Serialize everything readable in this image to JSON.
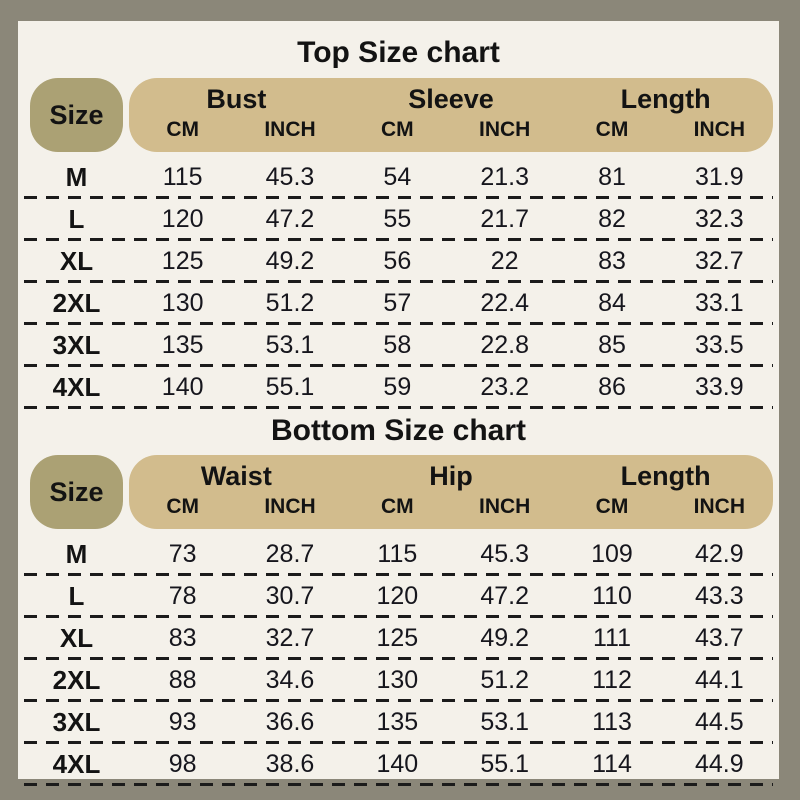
{
  "colors": {
    "frame": "#8b8779",
    "panel_background": "#f4f1ea",
    "size_pill": "#aba174",
    "header_band": "#d2bc8d",
    "text": "#131313",
    "dashed_line": "#1b1b1b"
  },
  "charts": [
    {
      "title": "Top Size chart",
      "size_label": "Size",
      "group_labels": [
        "Bust",
        "Sleeve",
        "Length"
      ],
      "unit_labels": [
        "CM",
        "INCH",
        "CM",
        "INCH",
        "CM",
        "INCH"
      ],
      "rows": [
        {
          "size": "M",
          "v": [
            "115",
            "45.3",
            "54",
            "21.3",
            "81",
            "31.9"
          ]
        },
        {
          "size": "L",
          "v": [
            "120",
            "47.2",
            "55",
            "21.7",
            "82",
            "32.3"
          ]
        },
        {
          "size": "XL",
          "v": [
            "125",
            "49.2",
            "56",
            "22",
            "83",
            "32.7"
          ]
        },
        {
          "size": "2XL",
          "v": [
            "130",
            "51.2",
            "57",
            "22.4",
            "84",
            "33.1"
          ]
        },
        {
          "size": "3XL",
          "v": [
            "135",
            "53.1",
            "58",
            "22.8",
            "85",
            "33.5"
          ]
        },
        {
          "size": "4XL",
          "v": [
            "140",
            "55.1",
            "59",
            "23.2",
            "86",
            "33.9"
          ]
        }
      ]
    },
    {
      "title": "Bottom Size chart",
      "size_label": "Size",
      "group_labels": [
        "Waist",
        "Hip",
        "Length"
      ],
      "unit_labels": [
        "CM",
        "INCH",
        "CM",
        "INCH",
        "CM",
        "INCH"
      ],
      "rows": [
        {
          "size": "M",
          "v": [
            "73",
            "28.7",
            "115",
            "45.3",
            "109",
            "42.9"
          ]
        },
        {
          "size": "L",
          "v": [
            "78",
            "30.7",
            "120",
            "47.2",
            "110",
            "43.3"
          ]
        },
        {
          "size": "XL",
          "v": [
            "83",
            "32.7",
            "125",
            "49.2",
            "111",
            "43.7"
          ]
        },
        {
          "size": "2XL",
          "v": [
            "88",
            "34.6",
            "130",
            "51.2",
            "112",
            "44.1"
          ]
        },
        {
          "size": "3XL",
          "v": [
            "93",
            "36.6",
            "135",
            "53.1",
            "113",
            "44.5"
          ]
        },
        {
          "size": "4XL",
          "v": [
            "98",
            "38.6",
            "140",
            "55.1",
            "114",
            "44.9"
          ]
        }
      ]
    }
  ],
  "chart_data": [
    {
      "type": "table",
      "title": "Top Size chart",
      "columns": [
        "Size",
        "Bust CM",
        "Bust INCH",
        "Sleeve CM",
        "Sleeve INCH",
        "Length CM",
        "Length INCH"
      ],
      "rows": [
        [
          "M",
          115,
          45.3,
          54,
          21.3,
          81,
          31.9
        ],
        [
          "L",
          120,
          47.2,
          55,
          21.7,
          82,
          32.3
        ],
        [
          "XL",
          125,
          49.2,
          56,
          22,
          83,
          32.7
        ],
        [
          "2XL",
          130,
          51.2,
          57,
          22.4,
          84,
          33.1
        ],
        [
          "3XL",
          135,
          53.1,
          58,
          22.8,
          85,
          33.5
        ],
        [
          "4XL",
          140,
          55.1,
          59,
          23.2,
          86,
          33.9
        ]
      ]
    },
    {
      "type": "table",
      "title": "Bottom Size chart",
      "columns": [
        "Size",
        "Waist CM",
        "Waist INCH",
        "Hip CM",
        "Hip INCH",
        "Length CM",
        "Length INCH"
      ],
      "rows": [
        [
          "M",
          73,
          28.7,
          115,
          45.3,
          109,
          42.9
        ],
        [
          "L",
          78,
          30.7,
          120,
          47.2,
          110,
          43.3
        ],
        [
          "XL",
          83,
          32.7,
          125,
          49.2,
          111,
          43.7
        ],
        [
          "2XL",
          88,
          34.6,
          130,
          51.2,
          112,
          44.1
        ],
        [
          "3XL",
          93,
          36.6,
          135,
          53.1,
          113,
          44.5
        ],
        [
          "4XL",
          98,
          38.6,
          140,
          55.1,
          114,
          44.9
        ]
      ]
    }
  ]
}
